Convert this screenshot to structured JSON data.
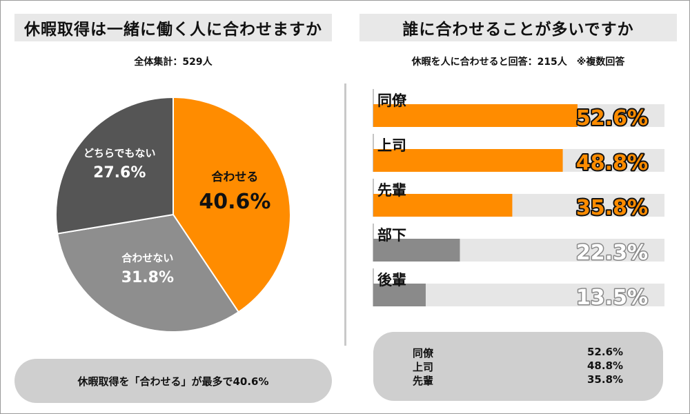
{
  "left_panel": {
    "title": "休暇取得は一緒に働く人に合わせますか",
    "subtitle": "全体集計：529人",
    "summary": "休暇取得を「合わせる」が最多で40.6%"
  },
  "right_panel": {
    "title": "誰に合わせることが多いですか",
    "subtitle": "休暇を人に合わせると回答：215人　※複数回答",
    "summary_items": [
      {
        "label": "同僚",
        "value": "52.6%"
      },
      {
        "label": "上司",
        "value": "48.8%"
      },
      {
        "label": "先輩",
        "value": "35.8%"
      }
    ]
  },
  "colors": {
    "accent": "#FF8C00",
    "gray_dark": "#555555",
    "gray_mid": "#8E8E8E",
    "gray_bar": "#8A8A8A",
    "track": "#E6E6E6"
  },
  "chart_data": [
    {
      "type": "pie",
      "title": "休暇取得は一緒に働く人に合わせますか",
      "slices": [
        {
          "label": "合わせる",
          "value": 40.6,
          "display": "40.6%",
          "color": "#FF8C00"
        },
        {
          "label": "合わせない",
          "value": 31.8,
          "display": "31.8%",
          "color": "#8E8E8E"
        },
        {
          "label": "どちらでもない",
          "value": 27.6,
          "display": "27.6%",
          "color": "#555555"
        }
      ],
      "start": "12 o'clock",
      "direction": "clockwise"
    },
    {
      "type": "bar",
      "orientation": "horizontal",
      "title": "誰に合わせることが多いですか",
      "categories": [
        "同僚",
        "上司",
        "先輩",
        "部下",
        "後輩"
      ],
      "values": [
        52.6,
        48.8,
        35.8,
        22.3,
        13.5
      ],
      "labels": [
        "52.6%",
        "48.8%",
        "35.8%",
        "22.3%",
        "13.5%"
      ],
      "highlight": [
        true,
        true,
        true,
        false,
        false
      ],
      "xlim": [
        0,
        75
      ]
    }
  ]
}
